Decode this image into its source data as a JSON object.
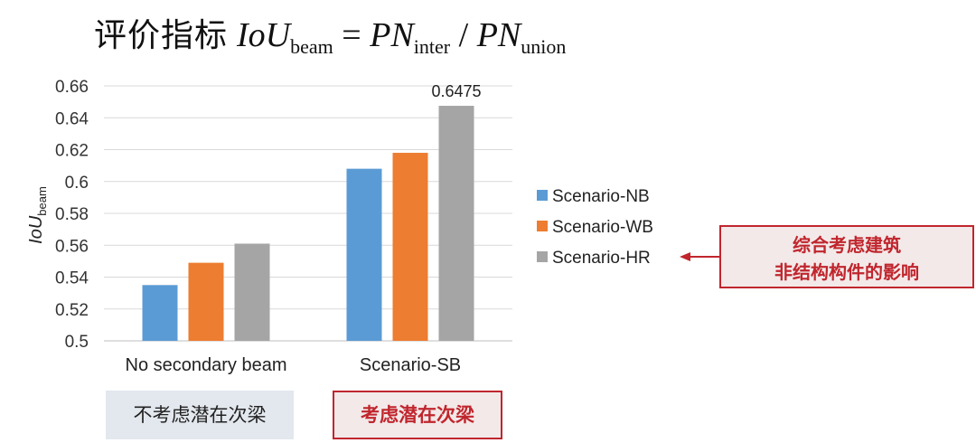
{
  "title": {
    "cn": "评价指标",
    "lhs_var": "IoU",
    "lhs_sub": "beam",
    "eq": "=",
    "num_var": "PN",
    "num_sub": "inter",
    "slash": "/",
    "den_var": "PN",
    "den_sub": "union"
  },
  "chart_data": {
    "type": "bar",
    "categories": [
      "No secondary beam",
      "Scenario-SB"
    ],
    "series": [
      {
        "name": "Scenario-NB",
        "color": "#5b9bd5",
        "values": [
          0.535,
          0.608
        ]
      },
      {
        "name": "Scenario-WB",
        "color": "#ed7d31",
        "values": [
          0.549,
          0.618
        ]
      },
      {
        "name": "Scenario-HR",
        "color": "#a5a5a5",
        "values": [
          0.561,
          0.6475
        ]
      }
    ],
    "ylabel_main": "IoU",
    "ylabel_sub": "beam",
    "ylim": [
      0.5,
      0.66
    ],
    "yticks": [
      "0.66",
      "0.64",
      "0.62",
      "0.6",
      "0.58",
      "0.56",
      "0.54",
      "0.52",
      "0.5"
    ],
    "grid": true,
    "legend": "right",
    "data_labels": [
      {
        "series": 2,
        "category": 1,
        "text": "0.6475"
      }
    ]
  },
  "annotation": {
    "line1": "综合考虑建筑",
    "line2": "非结构构件的影响",
    "color": "#c0262d"
  },
  "group_labels": {
    "left": "不考虑潜在次梁",
    "right": "考虑潜在次梁"
  }
}
